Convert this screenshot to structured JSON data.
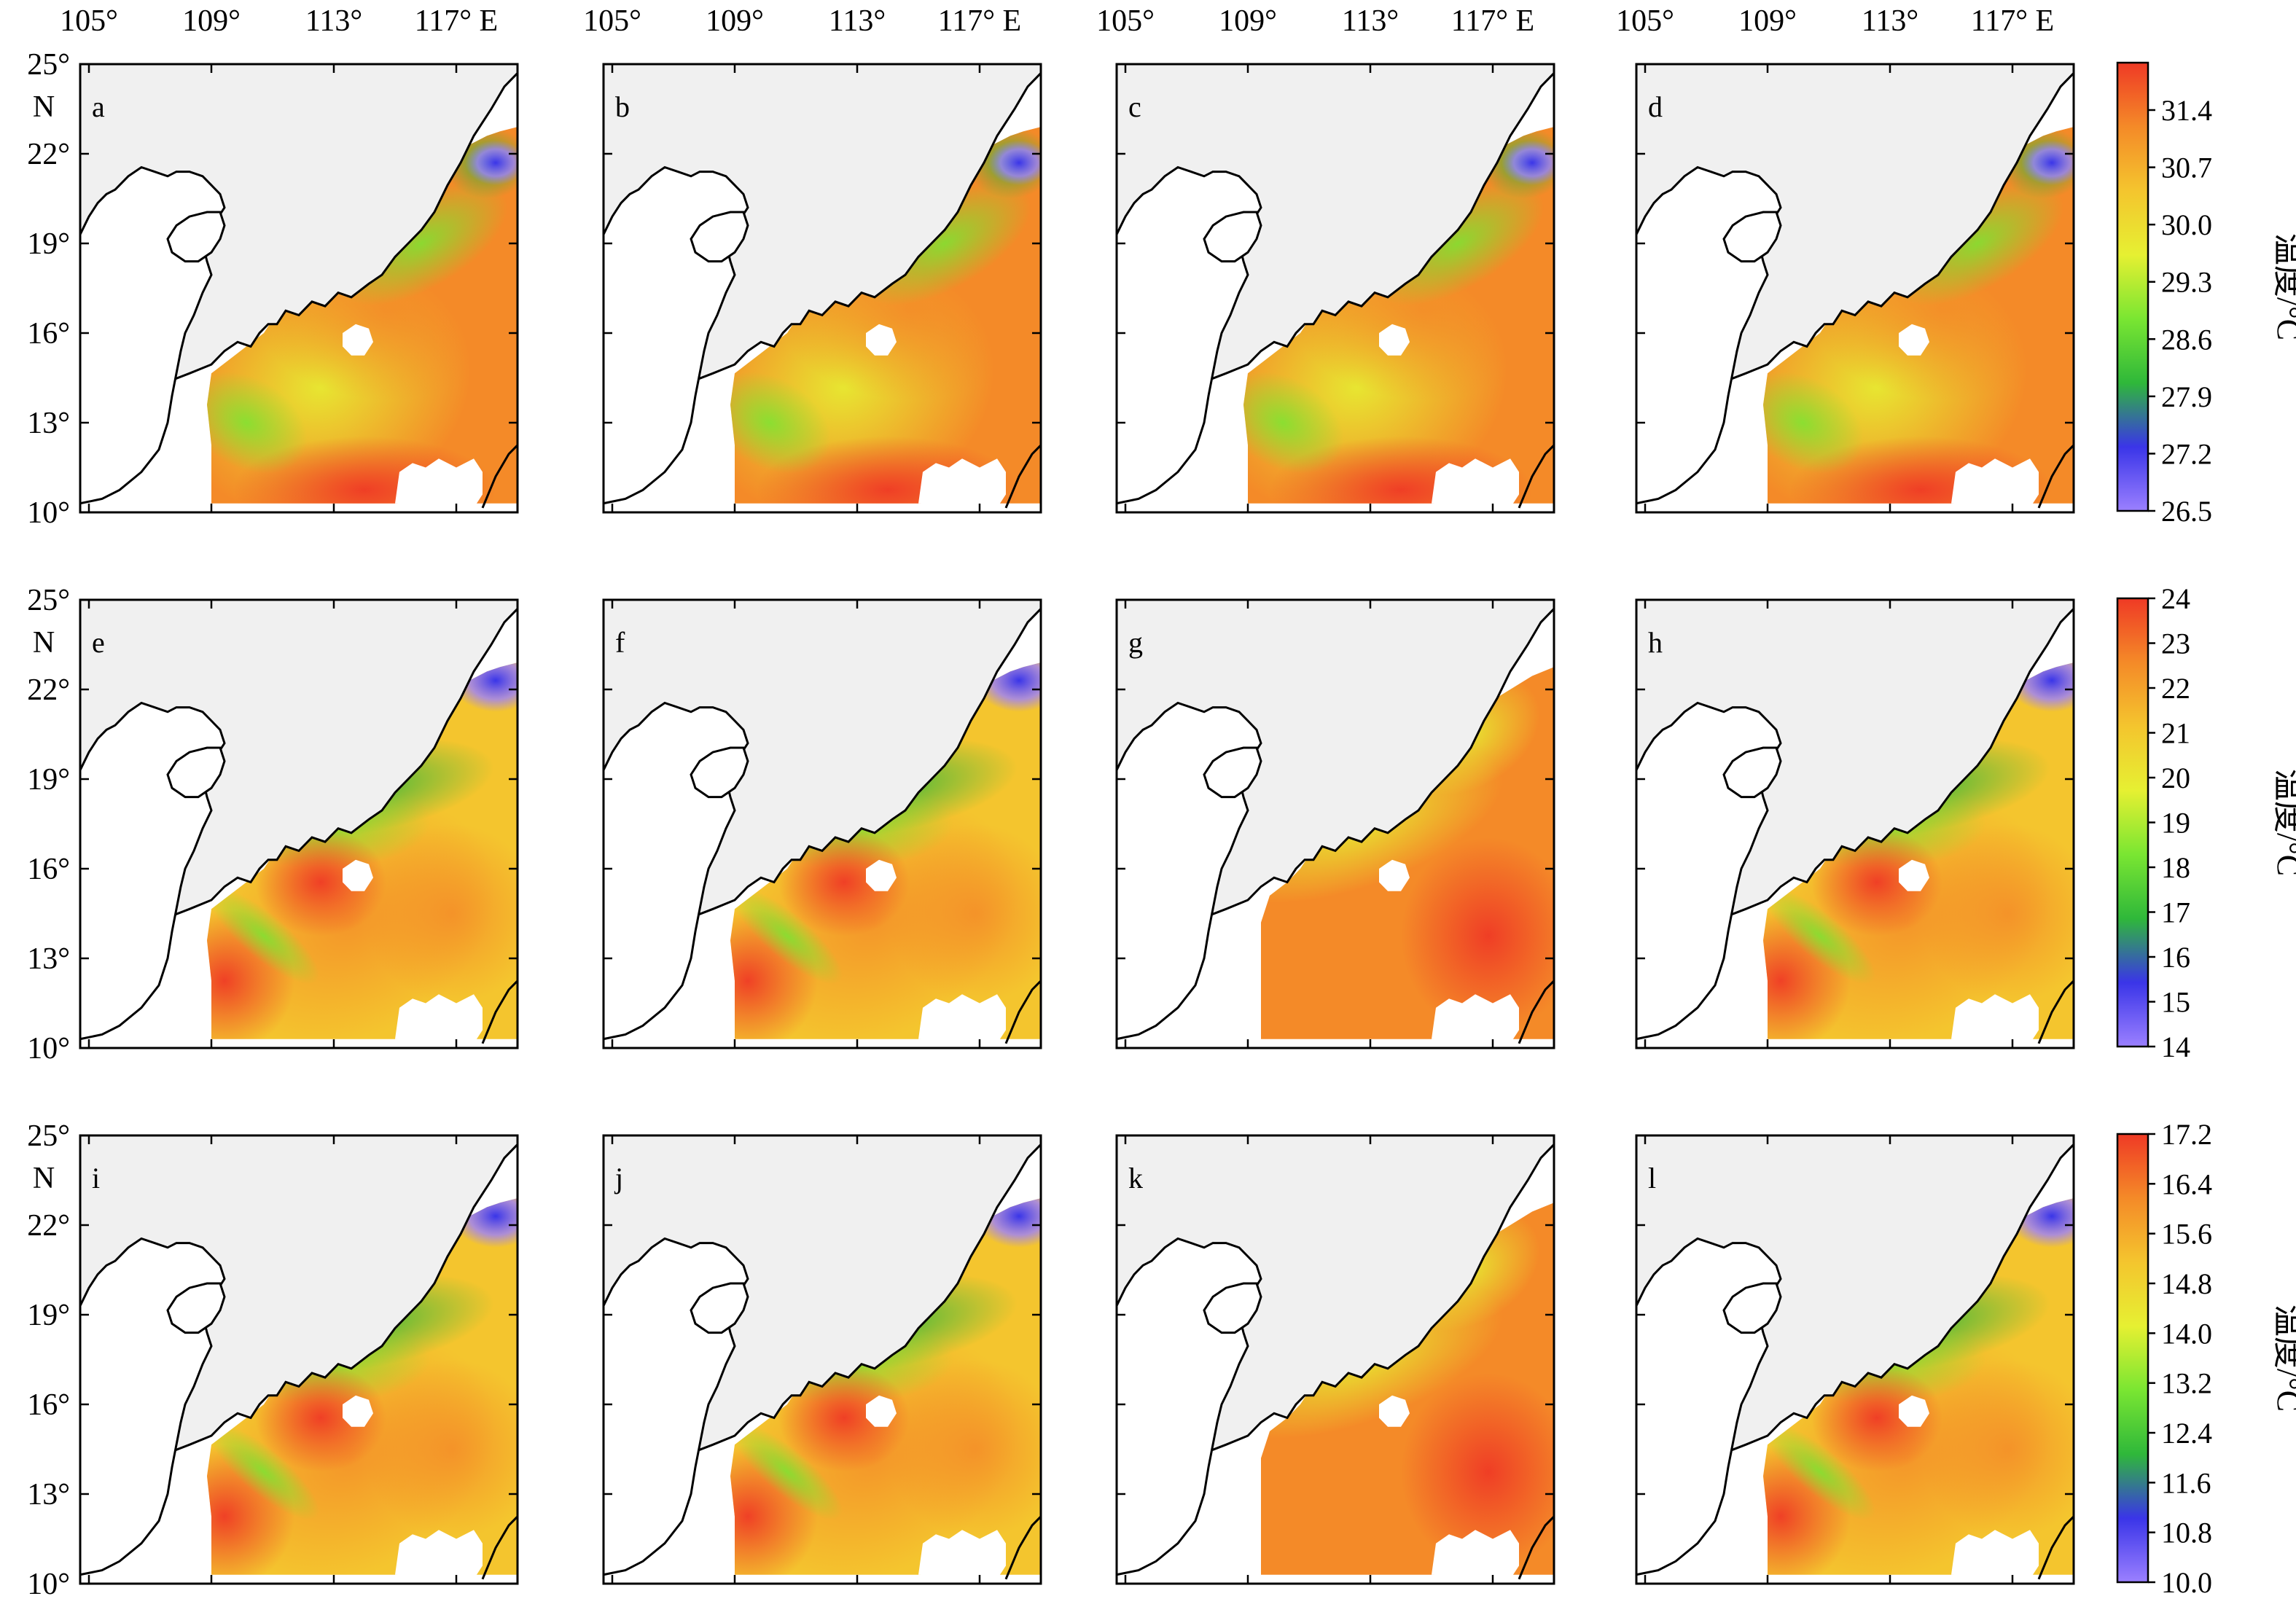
{
  "longitude_labels": [
    "105°",
    "109°",
    "113°",
    "117° E"
  ],
  "latitude_labels": [
    "25°",
    "22°",
    "19°",
    "16°",
    "13°",
    "10°"
  ],
  "latitude_hemisphere": "N",
  "panels": [
    {
      "letter": "a",
      "row": 0,
      "pattern": "warm-summer"
    },
    {
      "letter": "b",
      "row": 0,
      "pattern": "warm-summer"
    },
    {
      "letter": "c",
      "row": 0,
      "pattern": "warm-summer"
    },
    {
      "letter": "d",
      "row": 0,
      "pattern": "warm-summer"
    },
    {
      "letter": "e",
      "row": 1,
      "pattern": "gradient"
    },
    {
      "letter": "f",
      "row": 1,
      "pattern": "gradient"
    },
    {
      "letter": "g",
      "row": 1,
      "pattern": "smooth"
    },
    {
      "letter": "h",
      "row": 1,
      "pattern": "gradient"
    },
    {
      "letter": "i",
      "row": 2,
      "pattern": "gradient"
    },
    {
      "letter": "j",
      "row": 2,
      "pattern": "gradient"
    },
    {
      "letter": "k",
      "row": 2,
      "pattern": "smooth"
    },
    {
      "letter": "l",
      "row": 2,
      "pattern": "gradient"
    }
  ],
  "colorbars": [
    {
      "title": "温度/°C",
      "ticks": [
        "31.4",
        "30.7",
        "30.0",
        "29.3",
        "28.6",
        "27.9",
        "27.2",
        "26.5"
      ]
    },
    {
      "title": "温度/°C",
      "ticks": [
        "24",
        "23",
        "22",
        "21",
        "20",
        "19",
        "18",
        "17",
        "16",
        "15",
        "14"
      ]
    },
    {
      "title": "温度/°C",
      "ticks": [
        "17.2",
        "16.4",
        "15.6",
        "14.8",
        "14.0",
        "13.2",
        "12.4",
        "11.6",
        "10.8",
        "10.0"
      ]
    }
  ],
  "colors": {
    "land": "#f0f0f0",
    "outside": "#ffffff",
    "coast": "#000000",
    "scale": [
      "#9b80ff",
      "#3a35e8",
      "#2fb83a",
      "#7ae632",
      "#e6f032",
      "#f4c52e",
      "#f48a28",
      "#ef3a25"
    ]
  }
}
